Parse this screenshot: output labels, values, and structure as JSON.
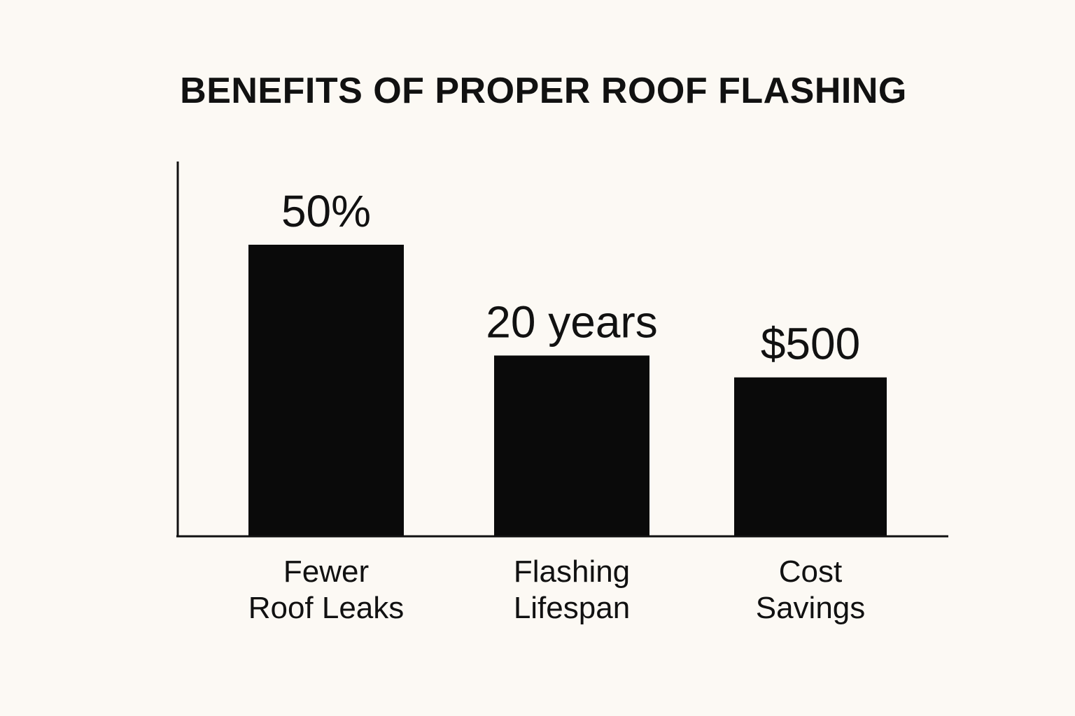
{
  "chart_data": {
    "type": "bar",
    "title": "BENEFITS OF PROPER ROOF FLASHING",
    "xlabel": "",
    "ylabel": "",
    "categories": [
      {
        "line1": "Fewer",
        "line2": "Roof Leaks"
      },
      {
        "line1": "Flashing",
        "line2": "Lifespan"
      },
      {
        "line1": "Cost",
        "line2": "Savings"
      }
    ],
    "values": [
      50,
      20,
      500
    ],
    "bar_levels": [
      1.0,
      0.62,
      0.545
    ],
    "data_labels": [
      "50%",
      "20 years",
      "$500"
    ],
    "grid": false,
    "bar_color": "#0a0a0a",
    "axis_color": "#111111",
    "background": "#fcf9f4"
  }
}
